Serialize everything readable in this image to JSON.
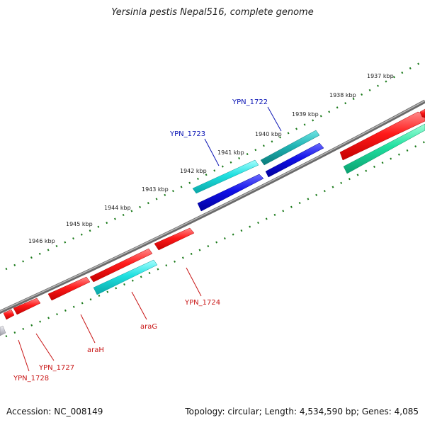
{
  "title": "Yersinia pestis Nepal516, complete genome",
  "footer": {
    "accession": "Accession: NC_008149",
    "summary": "Topology: circular; Length: 4,534,590 bp; Genes: 4,085"
  },
  "colors": {
    "backbone": "#8a8a8a",
    "ticks": "#1a7a1a",
    "forward_label": "#0a14b4",
    "reverse_label": "#c81414",
    "red_gene": "#ff1a1a",
    "cyan_gene": "#1adada",
    "blue_gene": "#1010e8",
    "teal_gene": "#20b4b4",
    "green_gene": "#20e0a0",
    "grey_gene": "#c8c8d0"
  },
  "scale_labels": [
    "1937 kbp",
    "1938 kbp",
    "1939 kbp",
    "1940 kbp",
    "1941 kbp",
    "1942 kbp",
    "1943 kbp",
    "1944 kbp",
    "1945 kbp",
    "1946 kbp"
  ],
  "gene_labels": {
    "forward": [
      "YPN_1722",
      "YPN_1723"
    ],
    "reverse": [
      "YPN_1724",
      "araG",
      "araH",
      "YPN_1727",
      "YPN_1728"
    ]
  },
  "legend_icons": {
    "gene_arrow": "gene-arrow-icon"
  }
}
